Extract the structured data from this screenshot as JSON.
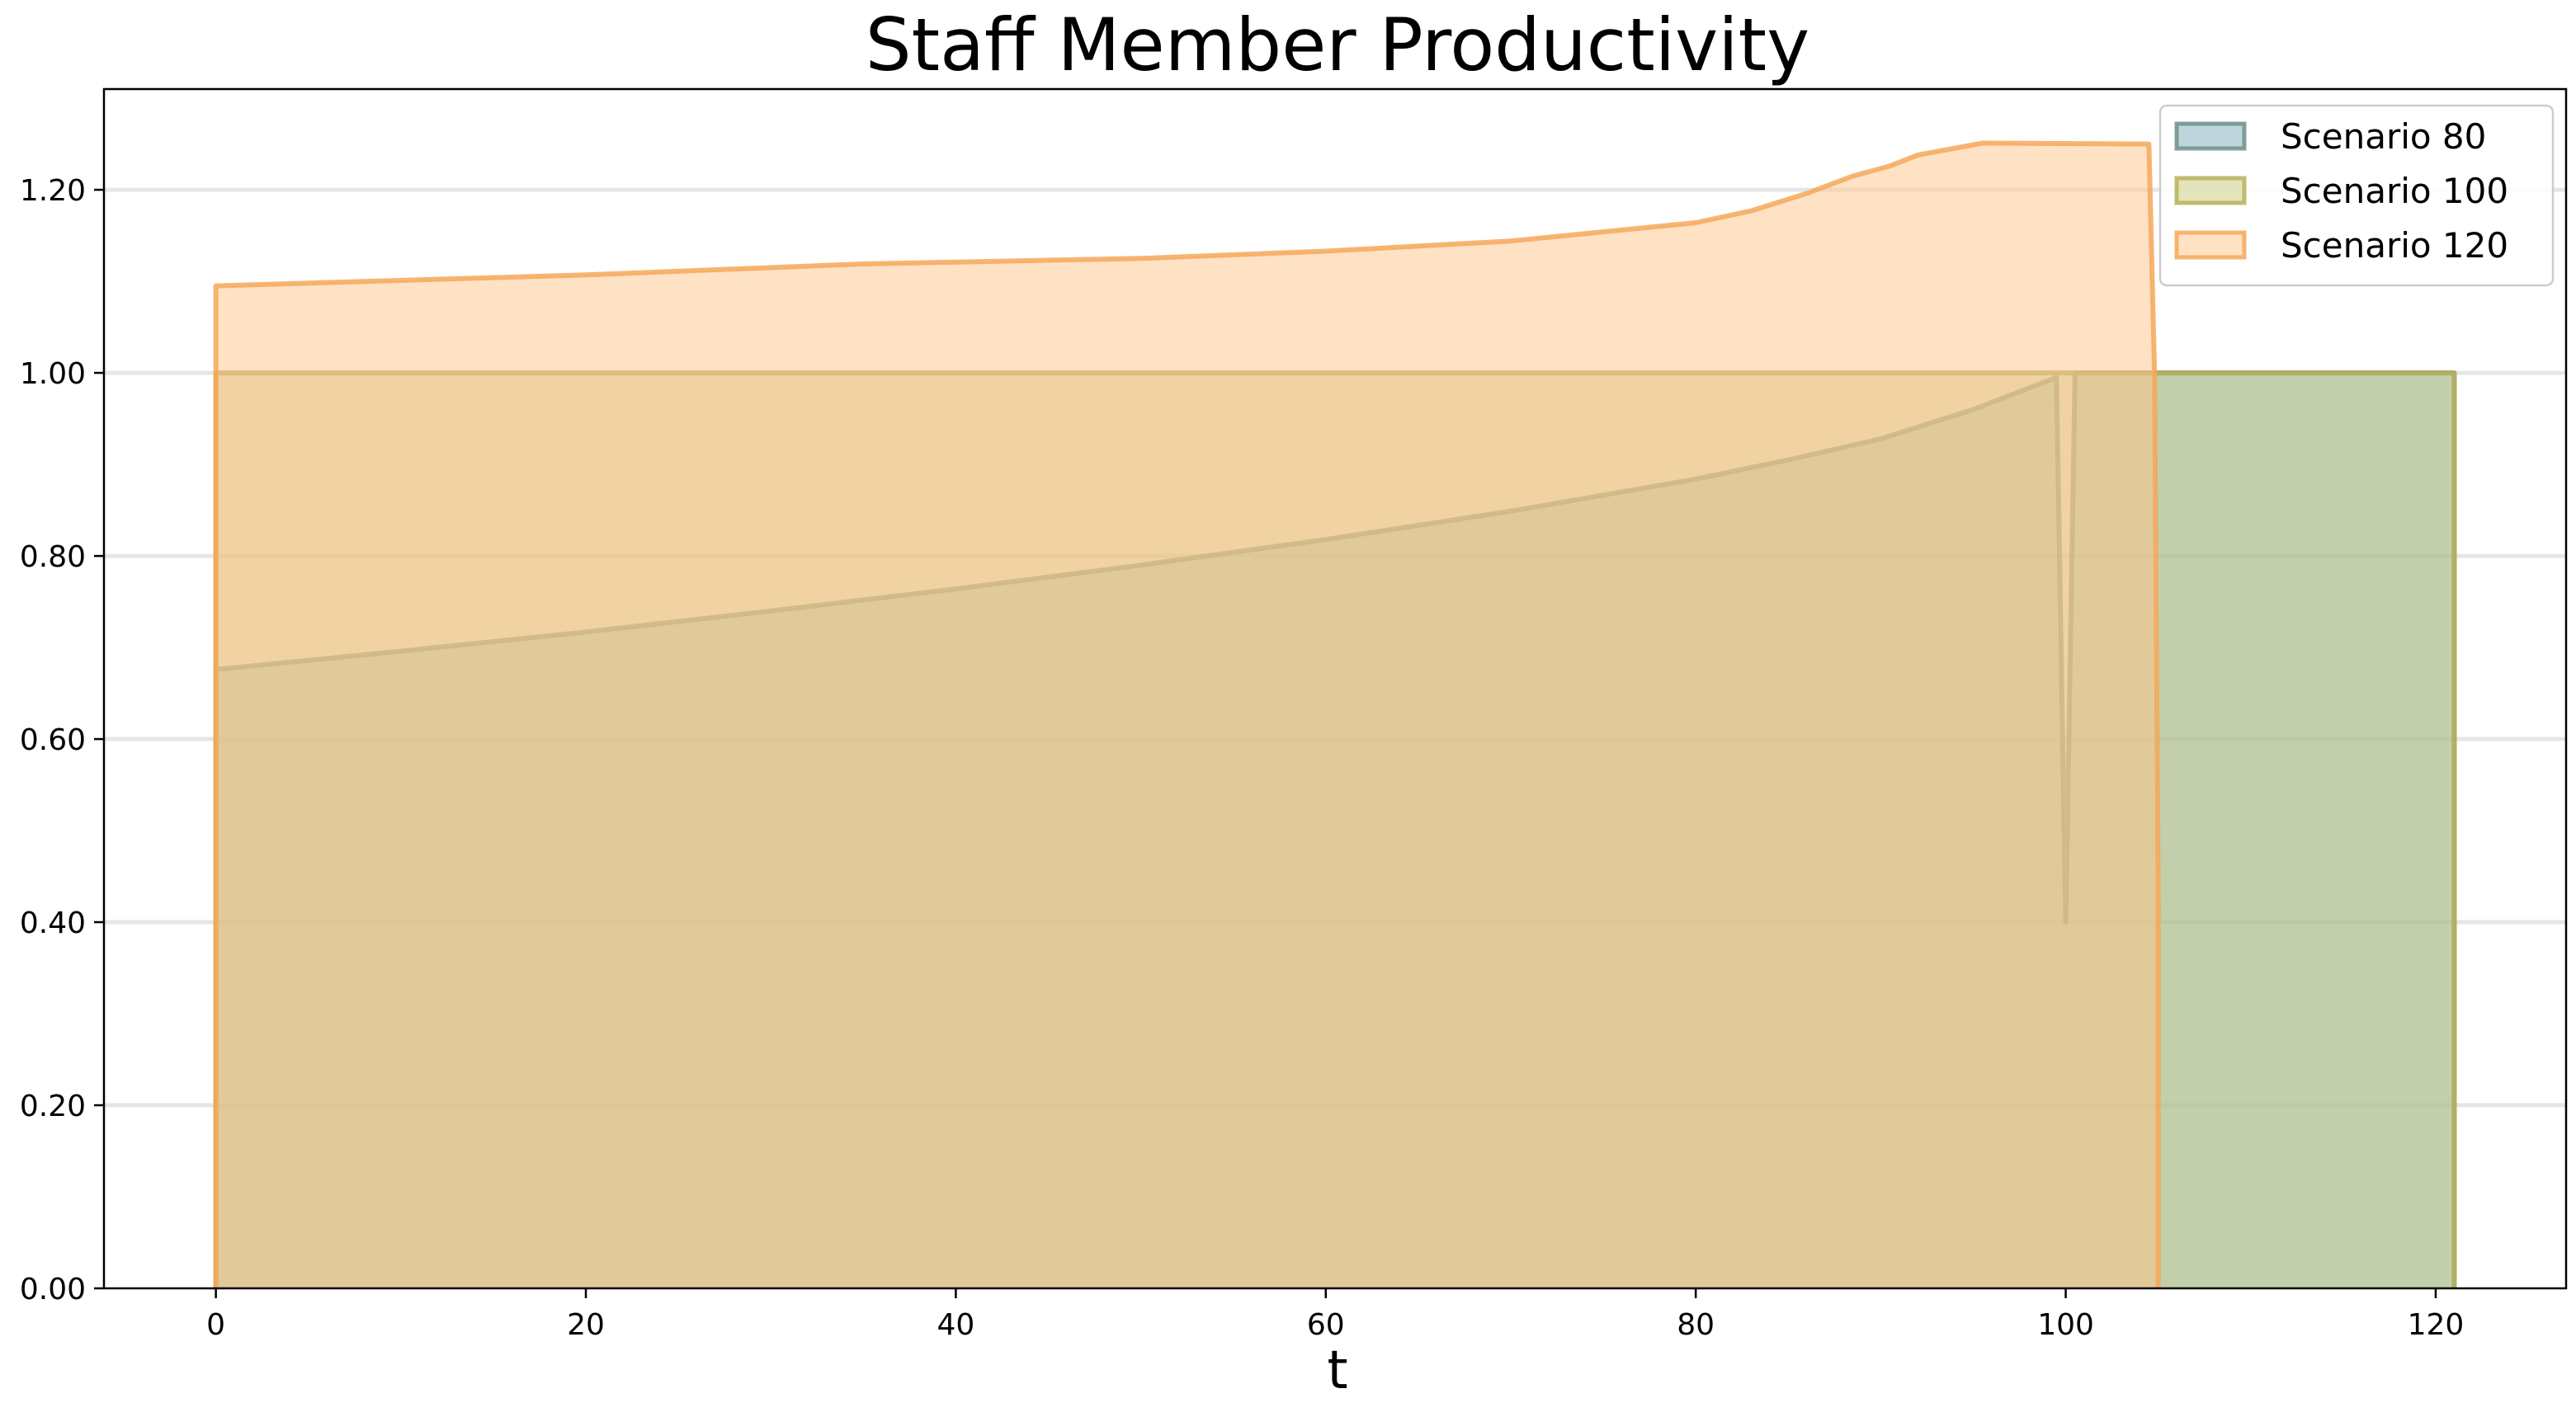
{
  "chart_data": {
    "type": "area",
    "title": "Staff Member Productivity",
    "xlabel": "t",
    "ylabel": "",
    "xlim": [
      -6.05,
      127.05
    ],
    "ylim": [
      0,
      1.31
    ],
    "xticks": [
      0,
      20,
      40,
      60,
      80,
      100,
      120
    ],
    "xtick_labels": [
      "0",
      "20",
      "40",
      "60",
      "80",
      "100",
      "120"
    ],
    "yticks": [
      0,
      0.2,
      0.4,
      0.6,
      0.8,
      1.0,
      1.2
    ],
    "ytick_labels": [
      "0.00",
      "0.20",
      "0.40",
      "0.60",
      "0.80",
      "1.00",
      "1.20"
    ],
    "grid": "horizontal",
    "legend_position": "top-right",
    "series": [
      {
        "name": "Scenario 80",
        "color": "#7fa9b8",
        "line_color": "#6e8f86",
        "x": [
          0,
          0,
          10,
          20,
          30,
          40,
          50,
          60,
          70,
          80,
          85,
          90,
          95,
          99.5,
          100,
          100.5,
          121,
          121
        ],
        "y": [
          0,
          0.676,
          0.696,
          0.717,
          0.74,
          0.764,
          0.79,
          0.818,
          0.849,
          0.884,
          0.905,
          0.928,
          0.96,
          0.995,
          0.4,
          1.0,
          1.0,
          0
        ]
      },
      {
        "name": "Scenario 100",
        "color": "#c8c87a",
        "line_color": "#b8b05a",
        "x": [
          0,
          0,
          121,
          121
        ],
        "y": [
          0,
          1.0,
          1.0,
          0
        ]
      },
      {
        "name": "Scenario 120",
        "color": "#ffc48a",
        "line_color": "#f5a85a",
        "x": [
          0,
          0,
          20,
          35,
          50,
          60,
          70,
          80,
          83,
          86,
          88.5,
          90.5,
          92,
          95.5,
          104.5,
          104.8,
          105,
          105
        ],
        "y": [
          0,
          1.095,
          1.107,
          1.119,
          1.125,
          1.133,
          1.144,
          1.164,
          1.177,
          1.196,
          1.215,
          1.226,
          1.238,
          1.251,
          1.25,
          1.0,
          0.425,
          0
        ]
      }
    ]
  }
}
